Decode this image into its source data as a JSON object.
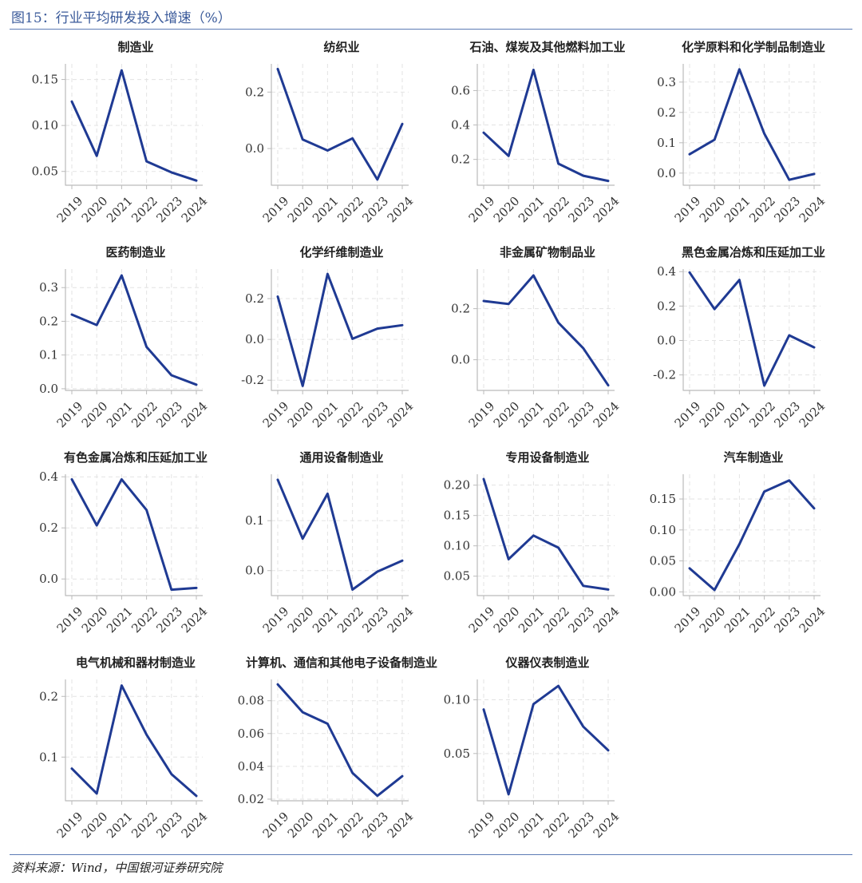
{
  "figure": {
    "title": "图15：行业平均研发投入增速（%）",
    "source": "资料来源：Wind，中国银河证券研究院",
    "line_color": "#1f3a93"
  },
  "chart_data": [
    {
      "type": "line",
      "title": "制造业",
      "x": [
        "2019",
        "2020",
        "2021",
        "2022",
        "2023",
        "2024"
      ],
      "values": [
        0.126,
        0.067,
        0.16,
        0.061,
        0.049,
        0.04
      ],
      "yticks": [
        0.05,
        0.1,
        0.15
      ],
      "ytick_labels": [
        "0.05",
        "0.10",
        "0.15"
      ],
      "ylim": [
        0.035,
        0.167
      ]
    },
    {
      "type": "line",
      "title": "纺织业",
      "x": [
        "2019",
        "2020",
        "2021",
        "2022",
        "2023",
        "2024"
      ],
      "values": [
        0.282,
        0.032,
        -0.007,
        0.036,
        -0.11,
        0.087
      ],
      "yticks": [
        0.0,
        0.2
      ],
      "ytick_labels": [
        "0.0",
        "0.2"
      ],
      "ylim": [
        -0.13,
        0.3
      ]
    },
    {
      "type": "line",
      "title": "石油、煤炭及其他燃料加工业",
      "x": [
        "2019",
        "2020",
        "2021",
        "2022",
        "2023",
        "2024"
      ],
      "values": [
        0.355,
        0.22,
        0.72,
        0.175,
        0.105,
        0.075
      ],
      "yticks": [
        0.2,
        0.4,
        0.6
      ],
      "ytick_labels": [
        "0.2",
        "0.4",
        "0.6"
      ],
      "ylim": [
        0.05,
        0.755
      ]
    },
    {
      "type": "line",
      "title": "化学原料和化学制品制造业",
      "x": [
        "2019",
        "2020",
        "2021",
        "2022",
        "2023",
        "2024"
      ],
      "values": [
        0.062,
        0.11,
        0.342,
        0.13,
        -0.022,
        -0.003
      ],
      "yticks": [
        0.0,
        0.1,
        0.2,
        0.3
      ],
      "ytick_labels": [
        "0.0",
        "0.1",
        "0.2",
        "0.3"
      ],
      "ylim": [
        -0.04,
        0.36
      ]
    },
    {
      "type": "line",
      "title": "医药制造业",
      "x": [
        "2019",
        "2020",
        "2021",
        "2022",
        "2023",
        "2024"
      ],
      "values": [
        0.22,
        0.189,
        0.336,
        0.124,
        0.04,
        0.012
      ],
      "yticks": [
        0.0,
        0.1,
        0.2,
        0.3
      ],
      "ytick_labels": [
        "0.0",
        "0.1",
        "0.2",
        "0.3"
      ],
      "ylim": [
        -0.005,
        0.355
      ]
    },
    {
      "type": "line",
      "title": "化学纤维制造业",
      "x": [
        "2019",
        "2020",
        "2021",
        "2022",
        "2023",
        "2024"
      ],
      "values": [
        0.21,
        -0.228,
        0.321,
        0.003,
        0.053,
        0.07
      ],
      "yticks": [
        -0.2,
        0.0,
        0.2
      ],
      "ytick_labels": [
        "-0.2",
        "0.0",
        "0.2"
      ],
      "ylim": [
        -0.25,
        0.345
      ]
    },
    {
      "type": "line",
      "title": "非金属矿物制品业",
      "x": [
        "2019",
        "2020",
        "2021",
        "2022",
        "2023",
        "2024"
      ],
      "values": [
        0.23,
        0.218,
        0.33,
        0.145,
        0.045,
        -0.1
      ],
      "yticks": [
        0.0,
        0.2
      ],
      "ytick_labels": [
        "0.0",
        "0.2"
      ],
      "ylim": [
        -0.12,
        0.355
      ]
    },
    {
      "type": "line",
      "title": "黑色金属冶炼和压延加工业",
      "x": [
        "2019",
        "2020",
        "2021",
        "2022",
        "2023",
        "2024"
      ],
      "values": [
        0.395,
        0.182,
        0.352,
        -0.262,
        0.03,
        -0.04
      ],
      "yticks": [
        -0.2,
        0.0,
        0.2,
        0.4
      ],
      "ytick_labels": [
        "-0.2",
        "0.0",
        "0.2",
        "0.4"
      ],
      "ylim": [
        -0.29,
        0.415
      ]
    },
    {
      "type": "line",
      "title": "有色金属冶炼和压延加工业",
      "x": [
        "2019",
        "2020",
        "2021",
        "2022",
        "2023",
        "2024"
      ],
      "values": [
        0.39,
        0.21,
        0.39,
        0.27,
        -0.042,
        -0.035
      ],
      "yticks": [
        0.0,
        0.2,
        0.4
      ],
      "ytick_labels": [
        "0.0",
        "0.2",
        "0.4"
      ],
      "ylim": [
        -0.065,
        0.41
      ]
    },
    {
      "type": "line",
      "title": "通用设备制造业",
      "x": [
        "2019",
        "2020",
        "2021",
        "2022",
        "2023",
        "2024"
      ],
      "values": [
        0.182,
        0.064,
        0.154,
        -0.038,
        -0.002,
        0.02
      ],
      "yticks": [
        0.0,
        0.1
      ],
      "ytick_labels": [
        "0.0",
        "0.1"
      ],
      "ylim": [
        -0.05,
        0.193
      ]
    },
    {
      "type": "line",
      "title": "专用设备制造业",
      "x": [
        "2019",
        "2020",
        "2021",
        "2022",
        "2023",
        "2024"
      ],
      "values": [
        0.21,
        0.078,
        0.117,
        0.097,
        0.034,
        0.028
      ],
      "yticks": [
        0.05,
        0.1,
        0.15,
        0.2
      ],
      "ytick_labels": [
        "0.05",
        "0.10",
        "0.15",
        "0.20"
      ],
      "ylim": [
        0.018,
        0.218
      ]
    },
    {
      "type": "line",
      "title": "汽车制造业",
      "x": [
        "2019",
        "2020",
        "2021",
        "2022",
        "2023",
        "2024"
      ],
      "values": [
        0.038,
        0.003,
        0.077,
        0.162,
        0.18,
        0.135
      ],
      "yticks": [
        0.0,
        0.05,
        0.1,
        0.15
      ],
      "ytick_labels": [
        "0.00",
        "0.05",
        "0.10",
        "0.15"
      ],
      "ylim": [
        -0.006,
        0.19
      ]
    },
    {
      "type": "line",
      "title": "电气机械和器材制造业",
      "x": [
        "2019",
        "2020",
        "2021",
        "2022",
        "2023",
        "2024"
      ],
      "values": [
        0.081,
        0.04,
        0.218,
        0.137,
        0.072,
        0.036
      ],
      "yticks": [
        0.1,
        0.2
      ],
      "ytick_labels": [
        "0.1",
        "0.2"
      ],
      "ylim": [
        0.028,
        0.228
      ]
    },
    {
      "type": "line",
      "title": "计算机、通信和其他电子设备制造业",
      "x": [
        "2019",
        "2020",
        "2021",
        "2022",
        "2023",
        "2024"
      ],
      "values": [
        0.09,
        0.073,
        0.066,
        0.036,
        0.022,
        0.034
      ],
      "yticks": [
        0.02,
        0.04,
        0.06,
        0.08
      ],
      "ytick_labels": [
        "0.02",
        "0.04",
        "0.06",
        "0.08"
      ],
      "ylim": [
        0.019,
        0.093
      ]
    },
    {
      "type": "line",
      "title": "仪器仪表制造业",
      "x": [
        "2019",
        "2020",
        "2021",
        "2022",
        "2023",
        "2024"
      ],
      "values": [
        0.091,
        0.012,
        0.096,
        0.113,
        0.075,
        0.053
      ],
      "yticks": [
        0.05,
        0.1
      ],
      "ytick_labels": [
        "0.05",
        "0.10"
      ],
      "ylim": [
        0.006,
        0.119
      ]
    }
  ]
}
